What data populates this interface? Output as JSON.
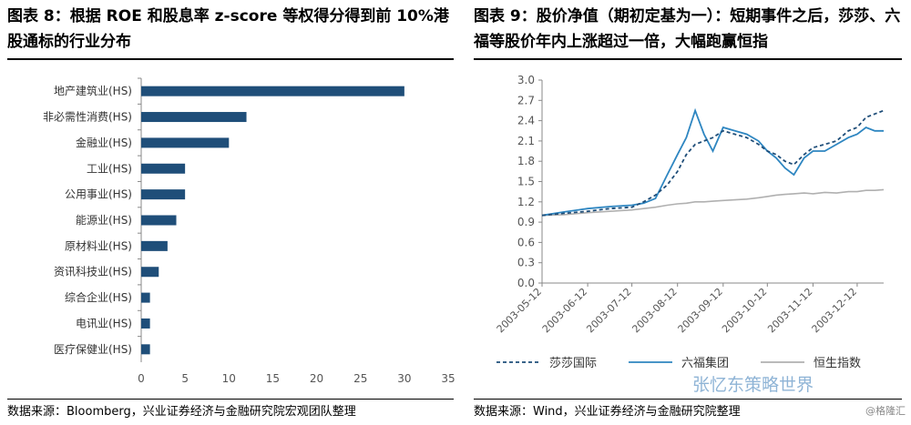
{
  "left_panel": {
    "title": "图表 8：根据 ROE 和股息率 z-score 等权得分得到前 10%港股通标的行业分布",
    "source": "数据来源：Bloomberg，兴业证券经济与金融研究院宏观团队整理"
  },
  "right_panel": {
    "title": "图表 9：股价净值（期初定基为一）：短期事件之后，莎莎、六福等股价年内上涨超过一倍，大幅跑赢恒指",
    "source": "数据来源：Wind，兴业证券经济与金融研究院整理"
  },
  "watermark": "张忆东策略世界",
  "corner_tag": "@格隆汇",
  "colors": {
    "bar": "#1f4e79",
    "saxa": "#1f4e79",
    "lukfook": "#2e86c1",
    "hsi": "#b0b0b0"
  },
  "chart_data": [
    {
      "type": "bar",
      "orientation": "horizontal",
      "categories": [
        "地产建筑业(HS)",
        "非必需性消费(HS)",
        "金融业(HS)",
        "工业(HS)",
        "公用事业(HS)",
        "能源业(HS)",
        "原材料业(HS)",
        "资讯科技业(HS)",
        "综合企业(HS)",
        "电讯业(HS)",
        "医疗保健业(HS)"
      ],
      "values": [
        30,
        12,
        10,
        5,
        5,
        4,
        3,
        2,
        1,
        1,
        1
      ],
      "xlim": [
        0,
        35
      ],
      "xticks": [
        "0",
        "5",
        "10",
        "15",
        "20",
        "25",
        "30",
        "35"
      ],
      "grid": false
    },
    {
      "type": "line",
      "ylim": [
        0,
        3.0
      ],
      "yticks": [
        "0.0",
        "0.3",
        "0.6",
        "0.9",
        "1.2",
        "1.5",
        "1.8",
        "2.1",
        "2.4",
        "2.7",
        "3.0"
      ],
      "xticks": [
        "2003-05-12",
        "2003-06-12",
        "2003-07-12",
        "2003-08-12",
        "2003-09-12",
        "2003-10-12",
        "2003-11-12",
        "2003-12-12"
      ],
      "x": [
        "2003-05-12",
        "2003-05-27",
        "2003-06-12",
        "2003-06-27",
        "2003-07-12",
        "2003-07-20",
        "2003-07-28",
        "2003-08-05",
        "2003-08-12",
        "2003-08-18",
        "2003-08-24",
        "2003-08-30",
        "2003-09-05",
        "2003-09-12",
        "2003-09-20",
        "2003-09-28",
        "2003-10-06",
        "2003-10-12",
        "2003-10-18",
        "2003-10-24",
        "2003-10-30",
        "2003-11-06",
        "2003-11-12",
        "2003-11-20",
        "2003-11-28",
        "2003-12-06",
        "2003-12-12",
        "2003-12-18",
        "2003-12-24",
        "2003-12-30"
      ],
      "series": [
        {
          "name": "莎莎国际",
          "style": "dashed",
          "values": [
            1.0,
            1.03,
            1.06,
            1.1,
            1.12,
            1.2,
            1.3,
            1.45,
            1.65,
            1.9,
            2.05,
            2.1,
            2.15,
            2.25,
            2.2,
            2.15,
            2.05,
            1.95,
            1.9,
            1.8,
            1.75,
            1.9,
            2.0,
            2.05,
            2.1,
            2.25,
            2.3,
            2.45,
            2.5,
            2.55
          ]
        },
        {
          "name": "六福集团",
          "style": "solid",
          "values": [
            1.0,
            1.05,
            1.1,
            1.13,
            1.15,
            1.18,
            1.25,
            1.6,
            1.9,
            2.15,
            2.55,
            2.2,
            1.95,
            2.3,
            2.25,
            2.2,
            2.1,
            1.95,
            1.85,
            1.7,
            1.6,
            1.85,
            1.95,
            1.95,
            2.05,
            2.15,
            2.2,
            2.3,
            2.25,
            2.25
          ]
        },
        {
          "name": "恒生指数",
          "style": "solid",
          "values": [
            1.0,
            1.01,
            1.04,
            1.06,
            1.08,
            1.1,
            1.12,
            1.15,
            1.17,
            1.18,
            1.2,
            1.2,
            1.21,
            1.22,
            1.23,
            1.24,
            1.26,
            1.28,
            1.3,
            1.31,
            1.32,
            1.33,
            1.32,
            1.34,
            1.33,
            1.35,
            1.35,
            1.37,
            1.37,
            1.38
          ]
        }
      ]
    }
  ]
}
